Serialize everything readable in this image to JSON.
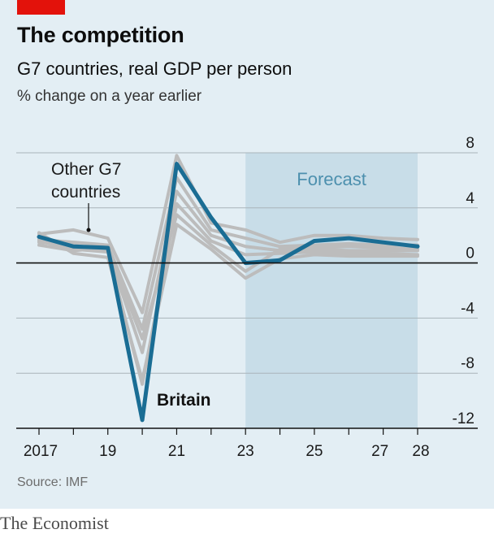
{
  "header": {
    "title": "The competition",
    "subtitle": "G7 countries, real GDP per person",
    "unit": "% change on a year earlier"
  },
  "footer": {
    "source": "Source: IMF",
    "brand": "The Economist"
  },
  "colors": {
    "background": "#e3eef4",
    "forecast_band": "#c8dde8",
    "britain": "#1a6d94",
    "others": "#bcbcbc",
    "accent_tag": "#e3120b"
  },
  "chart_data": {
    "type": "line",
    "x": [
      2017,
      2018,
      2019,
      2020,
      2021,
      2022,
      2023,
      2024,
      2025,
      2026,
      2027,
      2028
    ],
    "x_ticks": [
      2017,
      2019,
      2021,
      2023,
      2025,
      2027,
      2028
    ],
    "x_tick_labels": [
      "2017",
      "19",
      "21",
      "23",
      "25",
      "27",
      "28"
    ],
    "ylim": [
      -12,
      8
    ],
    "y_ticks": [
      8,
      4,
      0,
      -4,
      -8,
      -12
    ],
    "y_tick_labels": [
      "8",
      "4",
      "0",
      "-4",
      "-8",
      "-12"
    ],
    "forecast_range": [
      2023,
      2028
    ],
    "forecast_label": "Forecast",
    "series": [
      {
        "name": "Britain",
        "highlight": true,
        "values": [
          1.9,
          1.2,
          1.1,
          -11.4,
          7.2,
          3.3,
          0.0,
          0.2,
          1.6,
          1.8,
          1.5,
          1.2
        ]
      },
      {
        "other": true,
        "values": [
          2.1,
          2.4,
          1.8,
          -3.6,
          7.8,
          2.9,
          2.4,
          1.5,
          2.0,
          2.0,
          1.8,
          1.7
        ]
      },
      {
        "other": true,
        "values": [
          1.7,
          1.5,
          1.3,
          -4.8,
          6.2,
          2.4,
          1.8,
          1.2,
          1.3,
          1.4,
          1.3,
          1.3
        ]
      },
      {
        "other": true,
        "values": [
          1.5,
          1.3,
          0.9,
          -6.5,
          5.2,
          2.0,
          1.2,
          0.9,
          1.0,
          0.9,
          0.9,
          0.9
        ]
      },
      {
        "other": true,
        "values": [
          1.6,
          1.0,
          0.8,
          -8.8,
          4.3,
          1.6,
          0.6,
          0.7,
          0.8,
          0.7,
          0.7,
          0.6
        ]
      },
      {
        "other": true,
        "values": [
          2.2,
          0.7,
          0.4,
          -8.5,
          2.8,
          1.0,
          -1.1,
          0.3,
          0.6,
          0.5,
          0.5,
          0.5
        ]
      },
      {
        "other": true,
        "values": [
          1.3,
          0.9,
          1.1,
          -5.5,
          3.5,
          1.3,
          -0.6,
          1.0,
          1.1,
          1.2,
          1.1,
          1.0
        ]
      }
    ],
    "annotations": {
      "others_label": [
        "Other G7",
        "countries"
      ],
      "britain_label": "Britain"
    },
    "grid": true
  }
}
